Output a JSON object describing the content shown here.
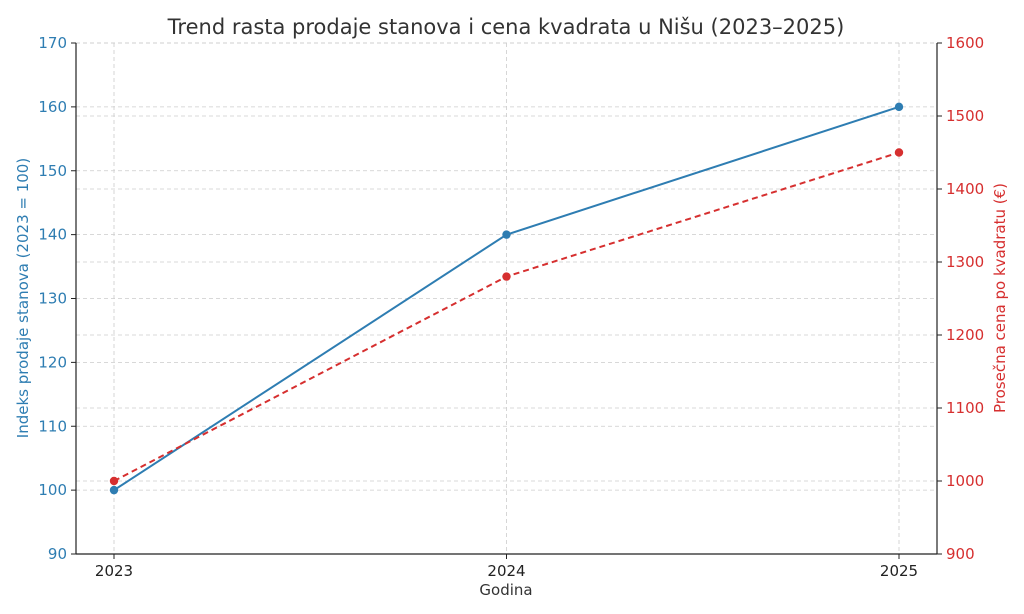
{
  "chart_data": {
    "type": "line",
    "title": "Trend rasta prodaje stanova i cena kvadrata u Nišu (2023–2025)",
    "xlabel": "Godina",
    "ylabel_left": "Indeks prodaje stanova (2023 = 100)",
    "ylabel_right": "Prosečna cena po kvadratu (€)",
    "categories": [
      "2023",
      "2024",
      "2025"
    ],
    "ylim_left": [
      90,
      170
    ],
    "ylim_right": [
      900,
      1600
    ],
    "yticks_left": [
      90,
      100,
      110,
      120,
      130,
      140,
      150,
      160,
      170
    ],
    "yticks_right": [
      900,
      1000,
      1100,
      1200,
      1300,
      1400,
      1500,
      1600
    ],
    "grid": true,
    "series": [
      {
        "axis": "left",
        "values": [
          100,
          140,
          160
        ],
        "color": "#2e7db2",
        "style": "solid"
      },
      {
        "axis": "right",
        "values": [
          1000,
          1280,
          1450
        ],
        "color": "#d62f2f",
        "style": "dashed"
      }
    ]
  }
}
